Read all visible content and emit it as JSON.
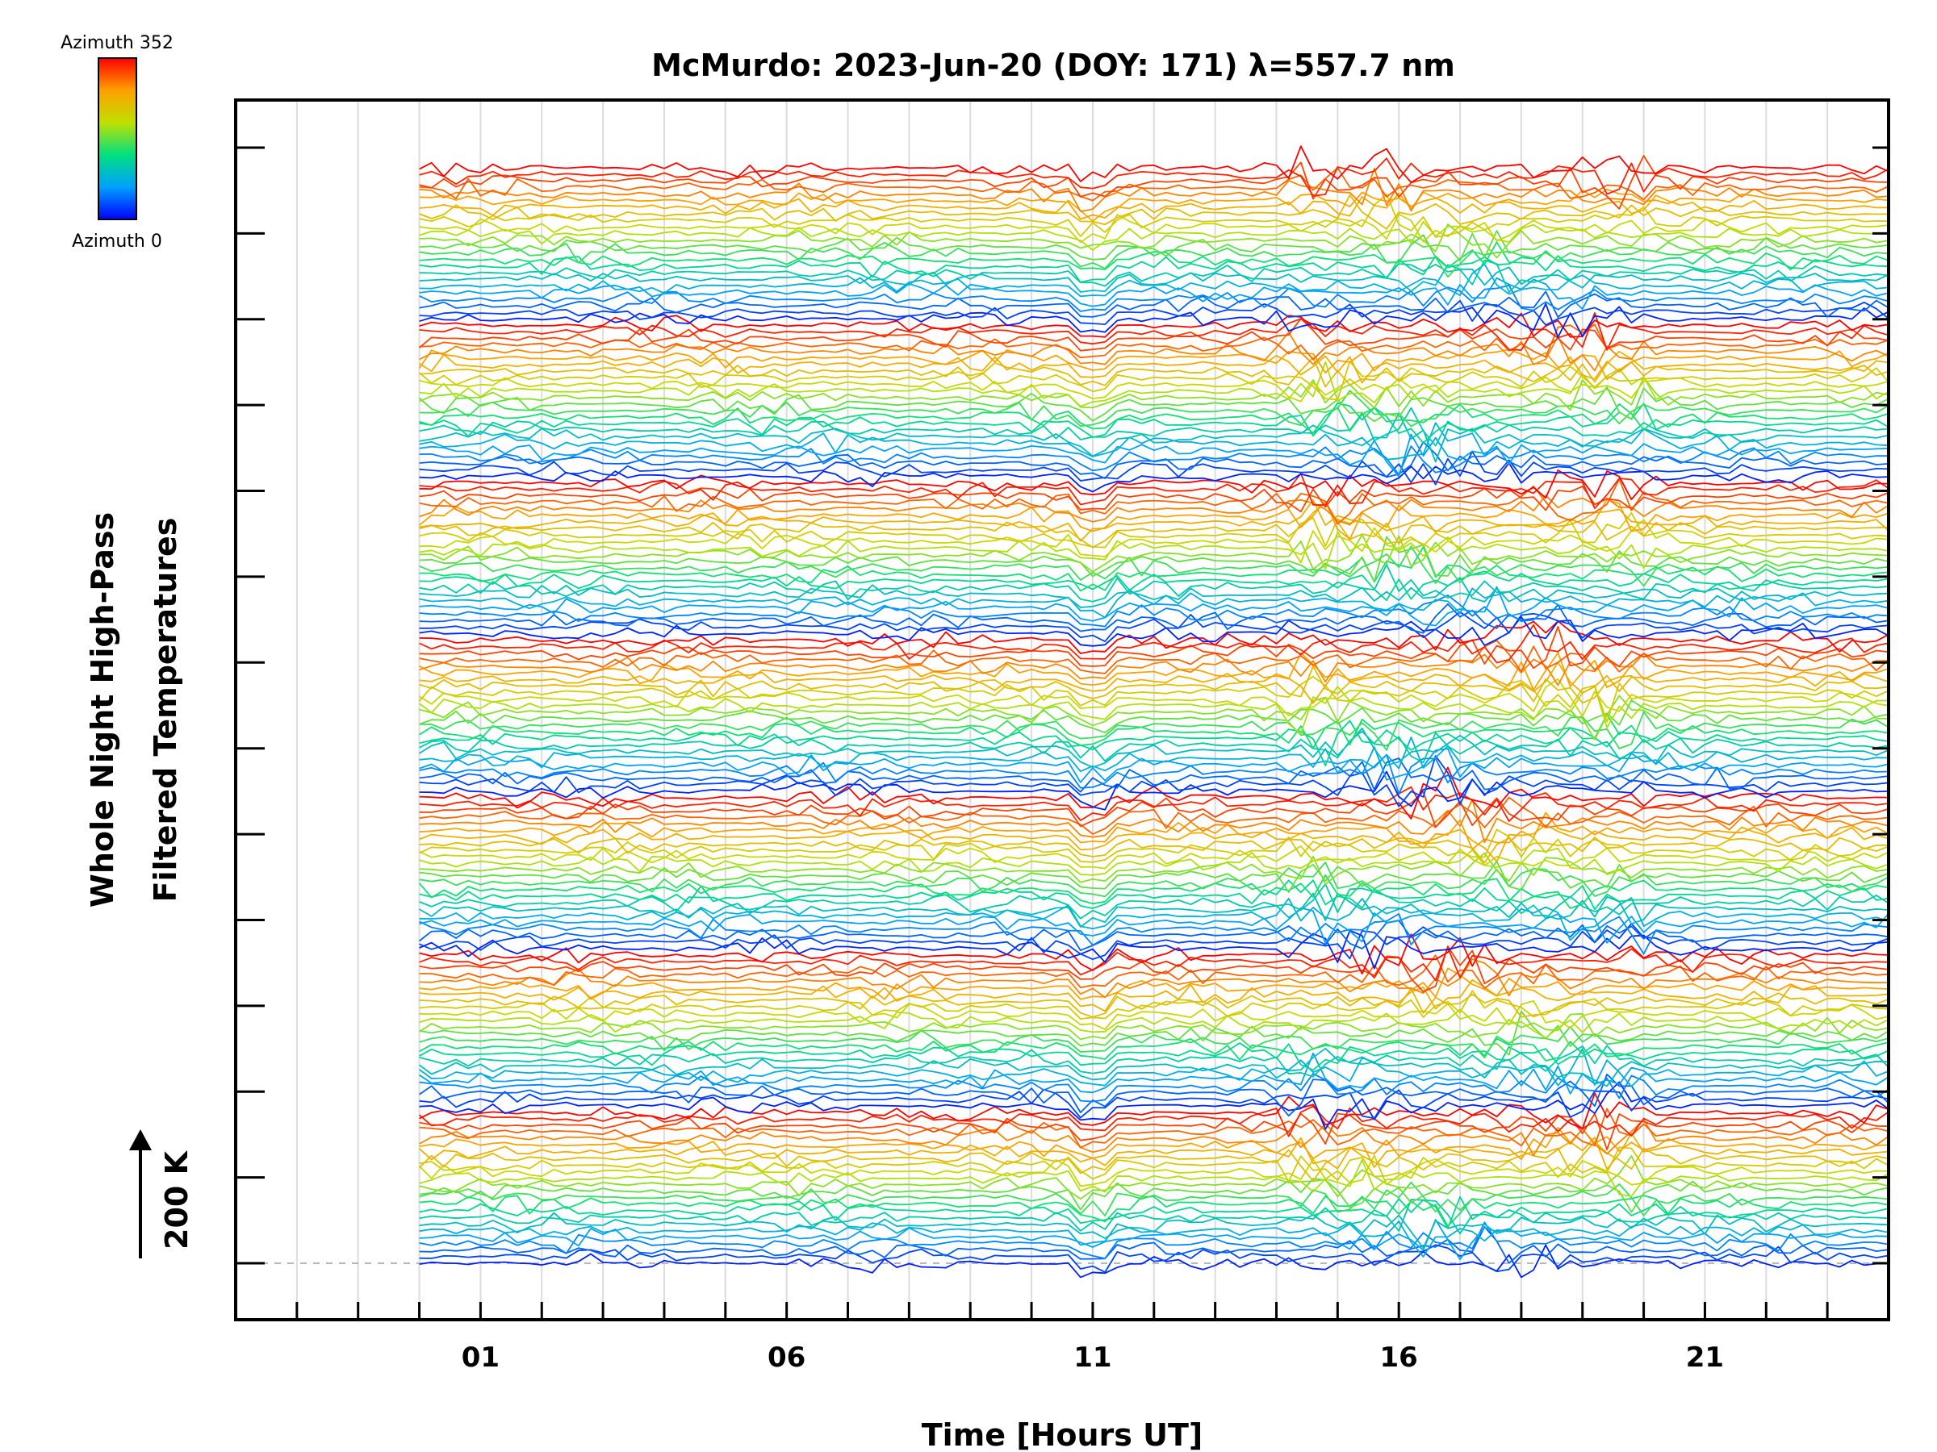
{
  "chart_data": {
    "type": "line",
    "title": "McMurdo: 2023-Jun-20 (DOY: 171) λ=557.7 nm",
    "xlabel": "Time [Hours UT]",
    "ylabel_line1": "Whole Night High-Pass",
    "ylabel_line2": "Filtered Temperatures",
    "x_tick_labels": [
      "01",
      "06",
      "11",
      "16",
      "21"
    ],
    "x_tick_values": [
      1,
      6,
      11,
      16,
      21
    ],
    "xlim": [
      -3,
      24
    ],
    "data_start_hour": 0,
    "data_end_hour": 24,
    "scale_bar_label": "200 K",
    "colorbar": {
      "top_label": "Azimuth 352",
      "bottom_label": "Azimuth 0",
      "colors": [
        "#0000ff",
        "#00a0ff",
        "#00e080",
        "#c0e000",
        "#ffa000",
        "#ff0000"
      ]
    },
    "azimuth_range": [
      0,
      352
    ],
    "groups": 7,
    "traces_per_group": 24,
    "grid": true,
    "disturbed_interval_hours": [
      14,
      20
    ]
  }
}
